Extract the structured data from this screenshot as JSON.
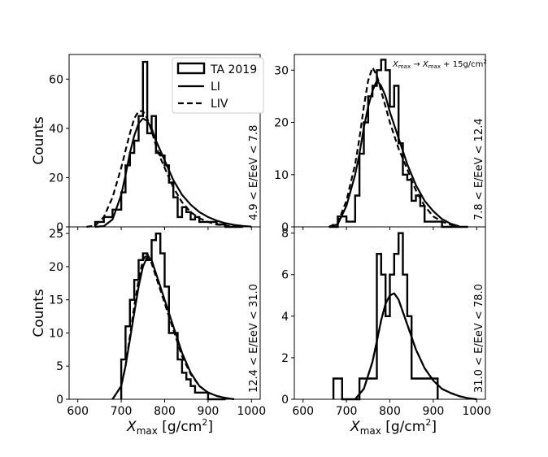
{
  "figure": {
    "ylabel": "Counts",
    "xlabel_sym": "X",
    "xlabel_sub": "max",
    "xlabel_unit": " [g/cm",
    "xlabel_sup": "2",
    "xlabel_close": "]",
    "legend": [
      {
        "label": "TA 2019",
        "style": "hist"
      },
      {
        "label": "LI",
        "style": "solid"
      },
      {
        "label": "LIV",
        "style": "dashed"
      }
    ],
    "shift_note": "X_max → X_max + 15g/cm²"
  },
  "chart_data": [
    {
      "type": "histogram",
      "position": "top-left",
      "energy_range": "4.9 < E/EeV < 7.8",
      "xlim": [
        580,
        1020
      ],
      "ylim": [
        0,
        70
      ],
      "xticks": [
        600,
        700,
        800,
        900,
        1000
      ],
      "yticks": [
        0,
        20,
        40,
        60
      ],
      "show_xticklabels": false,
      "show_legend": true,
      "hist": {
        "edges": [
          640,
          660,
          680,
          700,
          710,
          720,
          730,
          740,
          750,
          760,
          770,
          780,
          790,
          800,
          810,
          820,
          830,
          840,
          850,
          860,
          870,
          880,
          900,
          920,
          940,
          960,
          980
        ],
        "counts": [
          2,
          4,
          7,
          14,
          25,
          30,
          35,
          45,
          67,
          38,
          45,
          30,
          29,
          25,
          18,
          12,
          4,
          8,
          6,
          3,
          4,
          2,
          2,
          1,
          0,
          0
        ]
      },
      "li": {
        "x": [
          640,
          660,
          680,
          700,
          710,
          720,
          730,
          740,
          750,
          760,
          770,
          780,
          790,
          800,
          820,
          840,
          860,
          880,
          900,
          920,
          940,
          960,
          980,
          1000
        ],
        "y": [
          0,
          0.3,
          3,
          13,
          21,
          30,
          37,
          42,
          44,
          43,
          40,
          35,
          31,
          27,
          19,
          13,
          9,
          6,
          4,
          2.5,
          1.5,
          0.8,
          0.4,
          0.1
        ]
      },
      "liv": {
        "x": [
          620,
          640,
          660,
          680,
          700,
          710,
          720,
          730,
          740,
          750,
          760,
          770,
          780,
          790,
          800,
          820,
          840,
          860,
          880,
          900,
          920,
          940,
          960,
          980
        ],
        "y": [
          0,
          0.5,
          4,
          12,
          24,
          31,
          38,
          44,
          47,
          47,
          44,
          39,
          33,
          28,
          24,
          16,
          10,
          6,
          3.5,
          2,
          1,
          0.5,
          0.2,
          0
        ]
      }
    },
    {
      "type": "histogram",
      "position": "top-right",
      "energy_range": "7.8 < E/EeV < 12.4",
      "xlim": [
        580,
        1020
      ],
      "ylim": [
        0,
        33
      ],
      "xticks": [
        600,
        700,
        800,
        900,
        1000
      ],
      "yticks": [
        0,
        10,
        20,
        30
      ],
      "show_xticklabels": false,
      "show_legend": false,
      "hist": {
        "edges": [
          660,
          680,
          700,
          720,
          730,
          740,
          750,
          760,
          770,
          780,
          790,
          800,
          810,
          820,
          830,
          840,
          850,
          860,
          870,
          880,
          900,
          920,
          940,
          960,
          980
        ],
        "counts": [
          0,
          2,
          1,
          6,
          14,
          20,
          25,
          27,
          30,
          32,
          30,
          23,
          27,
          16,
          10,
          9,
          5,
          6,
          4,
          1,
          1,
          0,
          0,
          0
        ]
      },
      "li": {
        "x": [
          660,
          680,
          700,
          720,
          730,
          740,
          750,
          760,
          770,
          780,
          790,
          800,
          820,
          840,
          860,
          880,
          900,
          920,
          940,
          960
        ],
        "y": [
          0,
          0.5,
          4,
          10,
          14,
          19,
          23,
          26,
          28,
          27,
          25,
          22,
          17,
          12,
          8,
          5,
          3,
          1.5,
          0.6,
          0.1
        ]
      },
      "liv": {
        "x": [
          660,
          680,
          700,
          720,
          730,
          740,
          750,
          760,
          770,
          780,
          790,
          800,
          820,
          840,
          860,
          880,
          900,
          920,
          940,
          960
        ],
        "y": [
          0,
          0.8,
          5,
          12,
          17,
          23,
          28,
          30.5,
          29,
          26,
          23,
          20,
          15,
          11,
          7,
          4,
          2,
          1,
          0.4,
          0.1
        ]
      }
    },
    {
      "type": "histogram",
      "position": "bottom-left",
      "energy_range": "12.4 < E/EeV < 31.0",
      "xlim": [
        580,
        1020
      ],
      "ylim": [
        0,
        26
      ],
      "xticks": [
        600,
        700,
        800,
        900,
        1000
      ],
      "yticks": [
        0,
        5,
        10,
        15,
        20,
        25
      ],
      "show_xticklabels": true,
      "show_legend": false,
      "hist": {
        "edges": [
          700,
          710,
          720,
          730,
          740,
          750,
          760,
          770,
          780,
          790,
          800,
          810,
          820,
          830,
          840,
          850,
          860,
          870,
          880,
          900,
          920,
          940
        ],
        "counts": [
          6,
          11,
          15,
          18,
          21,
          22,
          21,
          24,
          25,
          22,
          17,
          10,
          10,
          6,
          4,
          3,
          2,
          1,
          1,
          0,
          0
        ]
      },
      "li": {
        "x": [
          680,
          700,
          710,
          720,
          730,
          740,
          750,
          760,
          770,
          780,
          790,
          800,
          810,
          820,
          840,
          860,
          880,
          900,
          920,
          940,
          960
        ],
        "y": [
          0,
          2,
          5,
          9,
          13,
          17,
          20,
          21.5,
          21,
          19,
          17,
          15,
          13,
          11,
          7,
          4,
          2,
          1,
          0.5,
          0.2,
          0
        ]
      },
      "liv": {
        "x": [
          680,
          700,
          710,
          720,
          730,
          740,
          750,
          760,
          770,
          780,
          790,
          800,
          810,
          820,
          840,
          860,
          880,
          900,
          920,
          940,
          960
        ],
        "y": [
          0,
          2,
          5,
          9.5,
          14,
          18,
          21,
          22,
          20.5,
          18.5,
          16.5,
          14.5,
          12.5,
          10.5,
          6.5,
          3.8,
          2,
          1,
          0.5,
          0.2,
          0
        ]
      }
    },
    {
      "type": "histogram",
      "position": "bottom-right",
      "energy_range": "31.0 < E/EeV < 78.0",
      "xlim": [
        580,
        1020
      ],
      "ylim": [
        0,
        8.3
      ],
      "xticks": [
        600,
        700,
        800,
        900,
        1000
      ],
      "yticks": [
        0,
        2,
        4,
        6,
        8
      ],
      "show_xticklabels": true,
      "show_legend": false,
      "hist": {
        "edges": [
          670,
          690,
          710,
          730,
          750,
          770,
          780,
          790,
          800,
          810,
          820,
          830,
          840,
          850,
          870,
          890,
          910
        ],
        "counts": [
          1,
          0,
          0,
          1,
          1,
          7,
          6,
          4,
          6,
          7,
          8,
          6,
          4,
          1,
          1,
          1
        ]
      },
      "li": {
        "x": [
          720,
          740,
          760,
          770,
          780,
          790,
          800,
          810,
          820,
          830,
          840,
          860,
          880,
          900,
          920,
          940,
          960,
          980,
          1000
        ],
        "y": [
          0,
          0.5,
          1.8,
          2.8,
          3.8,
          4.6,
          5.0,
          5.1,
          4.8,
          4.2,
          3.6,
          2.4,
          1.5,
          0.9,
          0.5,
          0.3,
          0.15,
          0.05,
          0
        ]
      },
      "liv": {
        "x": [
          720,
          740,
          760,
          770,
          780,
          790,
          800,
          810,
          820,
          830,
          840,
          860,
          880,
          900,
          920,
          940,
          960,
          980,
          1000
        ],
        "y": [
          0,
          0.5,
          1.8,
          2.8,
          3.8,
          4.6,
          5.0,
          5.1,
          4.8,
          4.2,
          3.6,
          2.4,
          1.5,
          0.9,
          0.5,
          0.3,
          0.15,
          0.05,
          0
        ]
      }
    }
  ]
}
